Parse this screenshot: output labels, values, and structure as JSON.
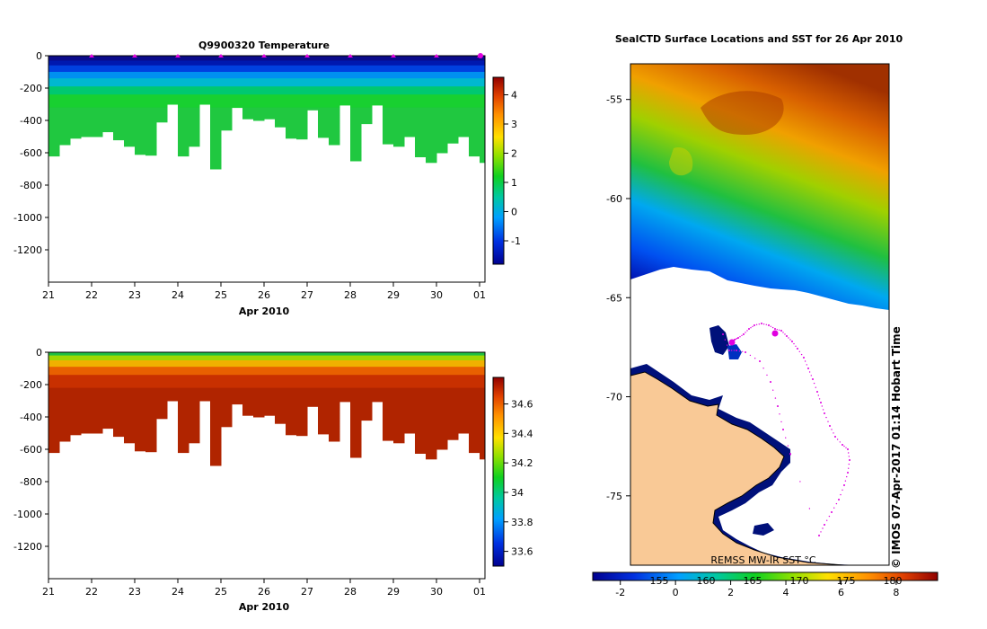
{
  "chart_data": [
    {
      "type": "heatmap",
      "title": "Q9900320  Temperature",
      "xlabel": "Apr 2010",
      "ylabel": "",
      "x_ticks": [
        "21",
        "22",
        "23",
        "24",
        "25",
        "26",
        "27",
        "28",
        "29",
        "30",
        "01"
      ],
      "y_ticks": [
        "0",
        "-200",
        "-400",
        "-600",
        "-800",
        "-1000",
        "-1200"
      ],
      "ylim": [
        -1400,
        0
      ],
      "colorbar_ticks": [
        "-1",
        "0",
        "1",
        "2",
        "3",
        "4"
      ],
      "colorbar_range": [
        -1.8,
        4.6
      ],
      "profiles_day": [
        21.0,
        21.25,
        21.5,
        21.75,
        22.0,
        22.25,
        22.5,
        22.75,
        23.0,
        23.25,
        23.5,
        23.75,
        24.0,
        24.25,
        24.5,
        24.75,
        25.0,
        25.25,
        25.5,
        25.75,
        26.0,
        26.25,
        26.5,
        26.75,
        27.0,
        27.25,
        27.5,
        27.75,
        28.0,
        28.25,
        28.5,
        28.75,
        29.0,
        29.25,
        29.5,
        29.75,
        30.0,
        30.25,
        30.5,
        30.75,
        31.0
      ],
      "max_depth": [
        -620,
        -550,
        -510,
        -500,
        -500,
        -470,
        -520,
        -560,
        -610,
        -615,
        -410,
        -300,
        -620,
        -560,
        -300,
        -700,
        -460,
        -320,
        -390,
        -400,
        -390,
        -440,
        -510,
        -515,
        -335,
        -505,
        -550,
        -305,
        -650,
        -420,
        -305,
        -545,
        -560,
        -500,
        -625,
        -660,
        -600,
        -540,
        -500,
        -620,
        -660
      ]
    },
    {
      "type": "heatmap",
      "title": "",
      "xlabel": "Apr 2010",
      "ylabel": "",
      "x_ticks": [
        "21",
        "22",
        "23",
        "24",
        "25",
        "26",
        "27",
        "28",
        "29",
        "30",
        "01"
      ],
      "y_ticks": [
        "0",
        "-200",
        "-400",
        "-600",
        "-800",
        "-1000",
        "-1200"
      ],
      "ylim": [
        -1400,
        0
      ],
      "colorbar_ticks": [
        "33.6",
        "33.8",
        "34",
        "34.2",
        "34.4",
        "34.6"
      ],
      "colorbar_range": [
        33.5,
        34.78
      ],
      "profiles_day": [
        21.0,
        21.25,
        21.5,
        21.75,
        22.0,
        22.25,
        22.5,
        22.75,
        23.0,
        23.25,
        23.5,
        23.75,
        24.0,
        24.25,
        24.5,
        24.75,
        25.0,
        25.25,
        25.5,
        25.75,
        26.0,
        26.25,
        26.5,
        26.75,
        27.0,
        27.25,
        27.5,
        27.75,
        28.0,
        28.25,
        28.5,
        28.75,
        29.0,
        29.25,
        29.5,
        29.75,
        30.0,
        30.25,
        30.5,
        30.75,
        31.0
      ],
      "max_depth": [
        -620,
        -550,
        -510,
        -500,
        -500,
        -470,
        -520,
        -560,
        -610,
        -615,
        -410,
        -300,
        -620,
        -560,
        -300,
        -700,
        -460,
        -320,
        -390,
        -400,
        -390,
        -440,
        -510,
        -515,
        -335,
        -505,
        -550,
        -305,
        -650,
        -420,
        -305,
        -545,
        -560,
        -500,
        -625,
        -660,
        -600,
        -540,
        -500,
        -620,
        -660
      ]
    },
    {
      "type": "heatmap",
      "title": "SealCTD Surface Locations and SST for 26 Apr 2010",
      "y_ticks": [
        "-55",
        "-60",
        "-65",
        "-70",
        "-75"
      ],
      "ylim": [
        -78.5,
        -53.2
      ],
      "x_ticks": [
        "155",
        "160",
        "165",
        "170",
        "175",
        "180"
      ],
      "colorbar_ticks": [
        "-2",
        "0",
        "2",
        "4",
        "6",
        "8"
      ],
      "colorbar_range": [
        -3,
        9.5
      ],
      "colorbar_label": "REMSS MW-IR SST °C",
      "side_label": "© IMOS 07-Apr-2017 01:14 Hobart Time"
    }
  ]
}
